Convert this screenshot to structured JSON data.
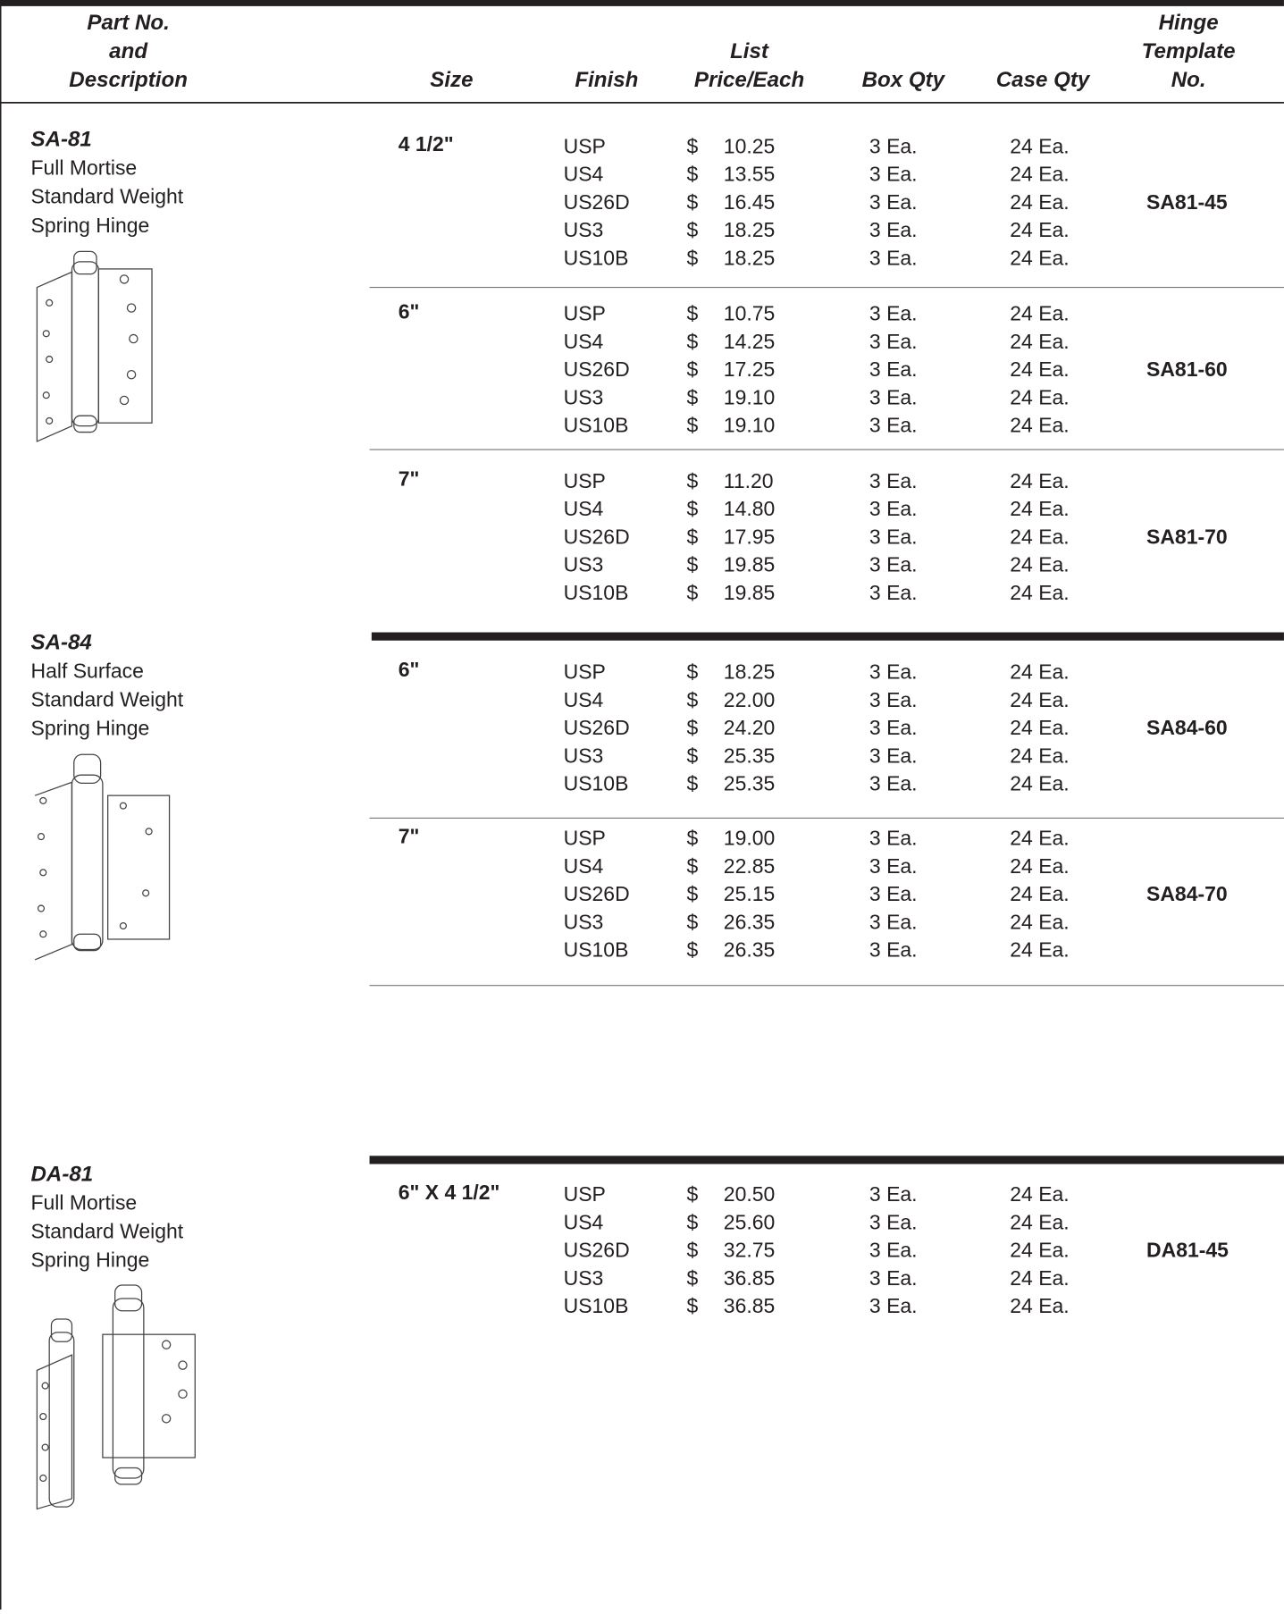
{
  "header": {
    "columns": [
      [
        "Part No.",
        "and",
        "Description"
      ],
      [
        "Size"
      ],
      [
        "Finish"
      ],
      [
        "List",
        "Price/Each"
      ],
      [
        "Box Qty"
      ],
      [
        "Case Qty"
      ],
      [
        "Hinge",
        "Template",
        "No."
      ]
    ]
  },
  "currency": "$",
  "products": [
    {
      "part": "SA-81",
      "description": [
        "Full Mortise",
        "Standard Weight",
        "Spring Hinge"
      ],
      "groups": [
        {
          "size": "4 1/2\"",
          "template": "SA81-45",
          "rows": [
            [
              "USP",
              "10.25",
              "3 Ea.",
              "24 Ea."
            ],
            [
              "US4",
              "13.55",
              "3 Ea.",
              "24 Ea."
            ],
            [
              "US26D",
              "16.45",
              "3 Ea.",
              "24 Ea."
            ],
            [
              "US3",
              "18.25",
              "3 Ea.",
              "24 Ea."
            ],
            [
              "US10B",
              "18.25",
              "3 Ea.",
              "24 Ea."
            ]
          ]
        },
        {
          "size": "6\"",
          "template": "SA81-60",
          "rows": [
            [
              "USP",
              "10.75",
              "3 Ea.",
              "24 Ea."
            ],
            [
              "US4",
              "14.25",
              "3 Ea.",
              "24 Ea."
            ],
            [
              "US26D",
              "17.25",
              "3 Ea.",
              "24 Ea."
            ],
            [
              "US3",
              "19.10",
              "3 Ea.",
              "24 Ea."
            ],
            [
              "US10B",
              "19.10",
              "3 Ea.",
              "24 Ea."
            ]
          ]
        },
        {
          "size": "7\"",
          "template": "SA81-70",
          "rows": [
            [
              "USP",
              "11.20",
              "3 Ea.",
              "24 Ea."
            ],
            [
              "US4",
              "14.80",
              "3 Ea.",
              "24 Ea."
            ],
            [
              "US26D",
              "17.95",
              "3 Ea.",
              "24 Ea."
            ],
            [
              "US3",
              "19.85",
              "3 Ea.",
              "24 Ea."
            ],
            [
              "US10B",
              "19.85",
              "3 Ea.",
              "24 Ea."
            ]
          ]
        }
      ]
    },
    {
      "part": "SA-84",
      "description": [
        "Half Surface",
        "Standard Weight",
        "Spring Hinge"
      ],
      "groups": [
        {
          "size": "6\"",
          "template": "SA84-60",
          "rows": [
            [
              "USP",
              "18.25",
              "3 Ea.",
              "24 Ea."
            ],
            [
              "US4",
              "22.00",
              "3 Ea.",
              "24 Ea."
            ],
            [
              "US26D",
              "24.20",
              "3 Ea.",
              "24 Ea."
            ],
            [
              "US3",
              "25.35",
              "3 Ea.",
              "24 Ea."
            ],
            [
              "US10B",
              "25.35",
              "3 Ea.",
              "24 Ea."
            ]
          ]
        },
        {
          "size": "7\"",
          "template": "SA84-70",
          "rows": [
            [
              "USP",
              "19.00",
              "3 Ea.",
              "24 Ea."
            ],
            [
              "US4",
              "22.85",
              "3 Ea.",
              "24 Ea."
            ],
            [
              "US26D",
              "25.15",
              "3 Ea.",
              "24 Ea."
            ],
            [
              "US3",
              "26.35",
              "3 Ea.",
              "24 Ea."
            ],
            [
              "US10B",
              "26.35",
              "3 Ea.",
              "24 Ea."
            ]
          ]
        }
      ]
    },
    {
      "part": "DA-81",
      "description": [
        "Full Mortise",
        "Standard Weight",
        "Spring Hinge"
      ],
      "groups": [
        {
          "size": "6\" X 4 1/2\"",
          "template": "DA81-45",
          "rows": [
            [
              "USP",
              "20.50",
              "3 Ea.",
              "24 Ea."
            ],
            [
              "US4",
              "25.60",
              "3 Ea.",
              "24 Ea."
            ],
            [
              "US26D",
              "32.75",
              "3 Ea.",
              "24 Ea."
            ],
            [
              "US3",
              "36.85",
              "3 Ea.",
              "24 Ea."
            ],
            [
              "US10B",
              "36.85",
              "3 Ea.",
              "24 Ea."
            ]
          ]
        }
      ]
    }
  ]
}
